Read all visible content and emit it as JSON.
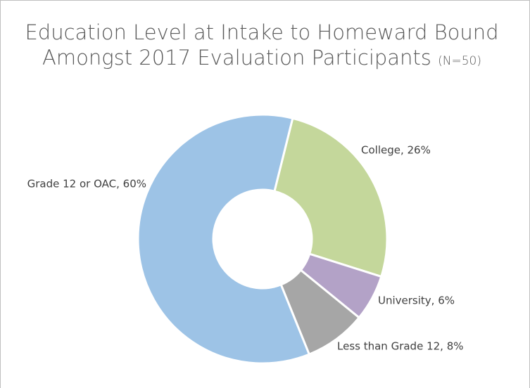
{
  "chart_data": {
    "type": "donut",
    "title": "Education Level at Intake to Homeward Bound",
    "title_line2": "Amongst 2017 Evaluation Participants",
    "subtitle": "(N=50)",
    "categories": [
      "College",
      "University",
      "Less than Grade 12",
      "Grade 12 or OAC"
    ],
    "values": [
      26,
      6,
      8,
      60
    ],
    "value_labels": [
      "College, 26%",
      "University, 6%",
      "Less than Grade 12, 8%",
      "Grade 12 or OAC, 60%"
    ],
    "colors": [
      "#c4d79b",
      "#b3a2c7",
      "#a6a6a6",
      "#9dc3e6"
    ]
  }
}
